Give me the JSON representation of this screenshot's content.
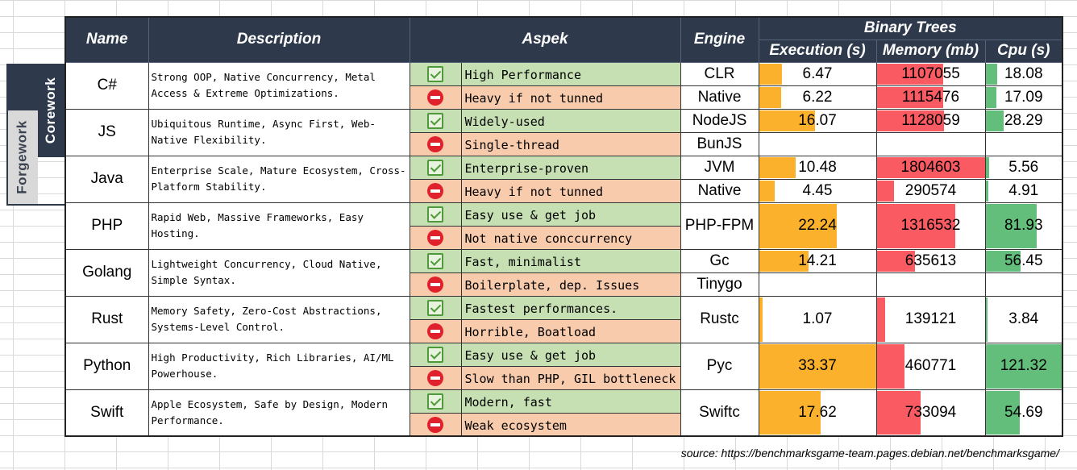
{
  "side_labels": {
    "corework": "Corework",
    "forgework": "Forgework"
  },
  "headers": {
    "name": "Name",
    "description": "Description",
    "aspek": "Aspek",
    "engine": "Engine",
    "binary_trees": "Binary Trees",
    "execution": "Execution (s)",
    "memory": "Memory (mb)",
    "cpu": "Cpu (s)"
  },
  "scale_max": {
    "execution": 33.37,
    "memory": 1804603,
    "cpu": 121.32
  },
  "languages": [
    {
      "name": "C#",
      "description": "Strong OOP, Native Concurrency, Metal Access & Extreme Optimizations.",
      "rows": [
        {
          "kind": "pro",
          "icon": "check-icon",
          "aspek": "High Performance",
          "engine": "CLR",
          "execution": 6.47,
          "memory": 1107055,
          "cpu": 18.08
        },
        {
          "kind": "con",
          "icon": "no-entry-icon",
          "aspek": "Heavy if not tunned",
          "engine": "Native",
          "execution": 6.22,
          "memory": 1115476,
          "cpu": 17.09
        }
      ]
    },
    {
      "name": "JS",
      "description": "Ubiquitous Runtime, Async First, Web-Native Flexibility.",
      "rows": [
        {
          "kind": "pro",
          "icon": "check-icon",
          "aspek": "Widely-used",
          "engine": "NodeJS",
          "execution": 16.07,
          "memory": 1128059,
          "cpu": 28.29
        },
        {
          "kind": "con",
          "icon": "no-entry-icon",
          "aspek": "Single-thread",
          "engine": "BunJS",
          "execution": null,
          "memory": null,
          "cpu": null
        }
      ]
    },
    {
      "name": "Java",
      "description": "Enterprise Scale, Mature Ecosystem, Cross-Platform Stability.",
      "rows": [
        {
          "kind": "pro",
          "icon": "check-icon",
          "aspek": "Enterprise-proven",
          "engine": "JVM",
          "execution": 10.48,
          "memory": 1804603,
          "cpu": 5.56
        },
        {
          "kind": "con",
          "icon": "no-entry-icon",
          "aspek": "Heavy if not tunned",
          "engine": "Native",
          "execution": 4.45,
          "memory": 290574,
          "cpu": 4.91
        }
      ]
    },
    {
      "name": "PHP",
      "description": "Rapid Web, Massive Frameworks, Easy Hosting.",
      "merged": {
        "engine": "PHP-FPM",
        "execution": 22.24,
        "memory": 1316532,
        "cpu": 81.93
      },
      "rows": [
        {
          "kind": "pro",
          "icon": "check-icon",
          "aspek": "Easy use & get job"
        },
        {
          "kind": "con",
          "icon": "no-entry-icon",
          "aspek": "Not native conccurrency"
        }
      ]
    },
    {
      "name": "Golang",
      "description": "Lightweight Concurrency, Cloud Native, Simple Syntax.",
      "rows": [
        {
          "kind": "pro",
          "icon": "check-icon",
          "aspek": "Fast, minimalist",
          "engine": "Gc",
          "execution": 14.21,
          "memory": 635613,
          "cpu": 56.45
        },
        {
          "kind": "con",
          "icon": "no-entry-icon",
          "aspek": "Boilerplate, dep. Issues",
          "engine": "Tinygo",
          "execution": null,
          "memory": null,
          "cpu": null
        }
      ]
    },
    {
      "name": "Rust",
      "description": "Memory Safety, Zero-Cost Abstractions, Systems-Level Control.",
      "merged": {
        "engine": "Rustc",
        "execution": 1.07,
        "memory": 139121,
        "cpu": 3.84
      },
      "rows": [
        {
          "kind": "pro",
          "icon": "check-icon",
          "aspek": "Fastest performances."
        },
        {
          "kind": "con",
          "icon": "no-entry-icon",
          "aspek": "Horrible, Boatload"
        }
      ]
    },
    {
      "name": "Python",
      "description": "High Productivity, Rich Libraries, AI/ML Powerhouse.",
      "merged": {
        "engine": "Pyc",
        "execution": 33.37,
        "memory": 460771,
        "cpu": 121.32
      },
      "rows": [
        {
          "kind": "pro",
          "icon": "check-icon",
          "aspek": "Easy use & get job"
        },
        {
          "kind": "con",
          "icon": "no-entry-icon",
          "aspek": "Slow than PHP, GIL bottleneck"
        }
      ]
    },
    {
      "name": "Swift",
      "description": "Apple Ecosystem, Safe by Design, Modern Performance.",
      "merged": {
        "engine": "Swiftc",
        "execution": 17.62,
        "memory": 733094,
        "cpu": 54.69
      },
      "rows": [
        {
          "kind": "pro",
          "icon": "check-icon",
          "aspek": "Modern, fast"
        },
        {
          "kind": "con",
          "icon": "no-entry-icon",
          "aspek": "Weak ecosystem"
        }
      ]
    }
  ],
  "source": "source: https://benchmarksgame-team.pages.debian.net/benchmarksgame/",
  "colors": {
    "header_bg": "#2e3a4c",
    "pro_bg": "#c6e0b4",
    "con_bg": "#f8cbad",
    "exec_bar": "#fbb12c",
    "mem_bar": "#fa5a61",
    "cpu_bar": "#63be7b"
  }
}
